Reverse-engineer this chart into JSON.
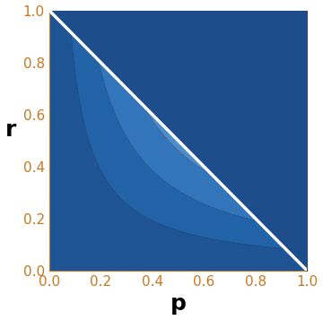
{
  "title": "",
  "xlabel": "p",
  "ylabel": "r",
  "xlim": [
    0,
    1
  ],
  "ylim": [
    0,
    1
  ],
  "xticks": [
    0.0,
    0.2,
    0.4,
    0.6,
    0.8,
    1.0
  ],
  "yticks": [
    0.0,
    0.2,
    0.4,
    0.6,
    0.8,
    1.0
  ],
  "background_color": "#1e4d8c",
  "boundary_color": "#ffffff",
  "xlabel_fontsize": 18,
  "ylabel_fontsize": 18,
  "tick_fontsize": 11,
  "tick_color": "#c87820",
  "n_levels": 12,
  "figsize": [
    3.6,
    3.57
  ],
  "dpi": 100
}
